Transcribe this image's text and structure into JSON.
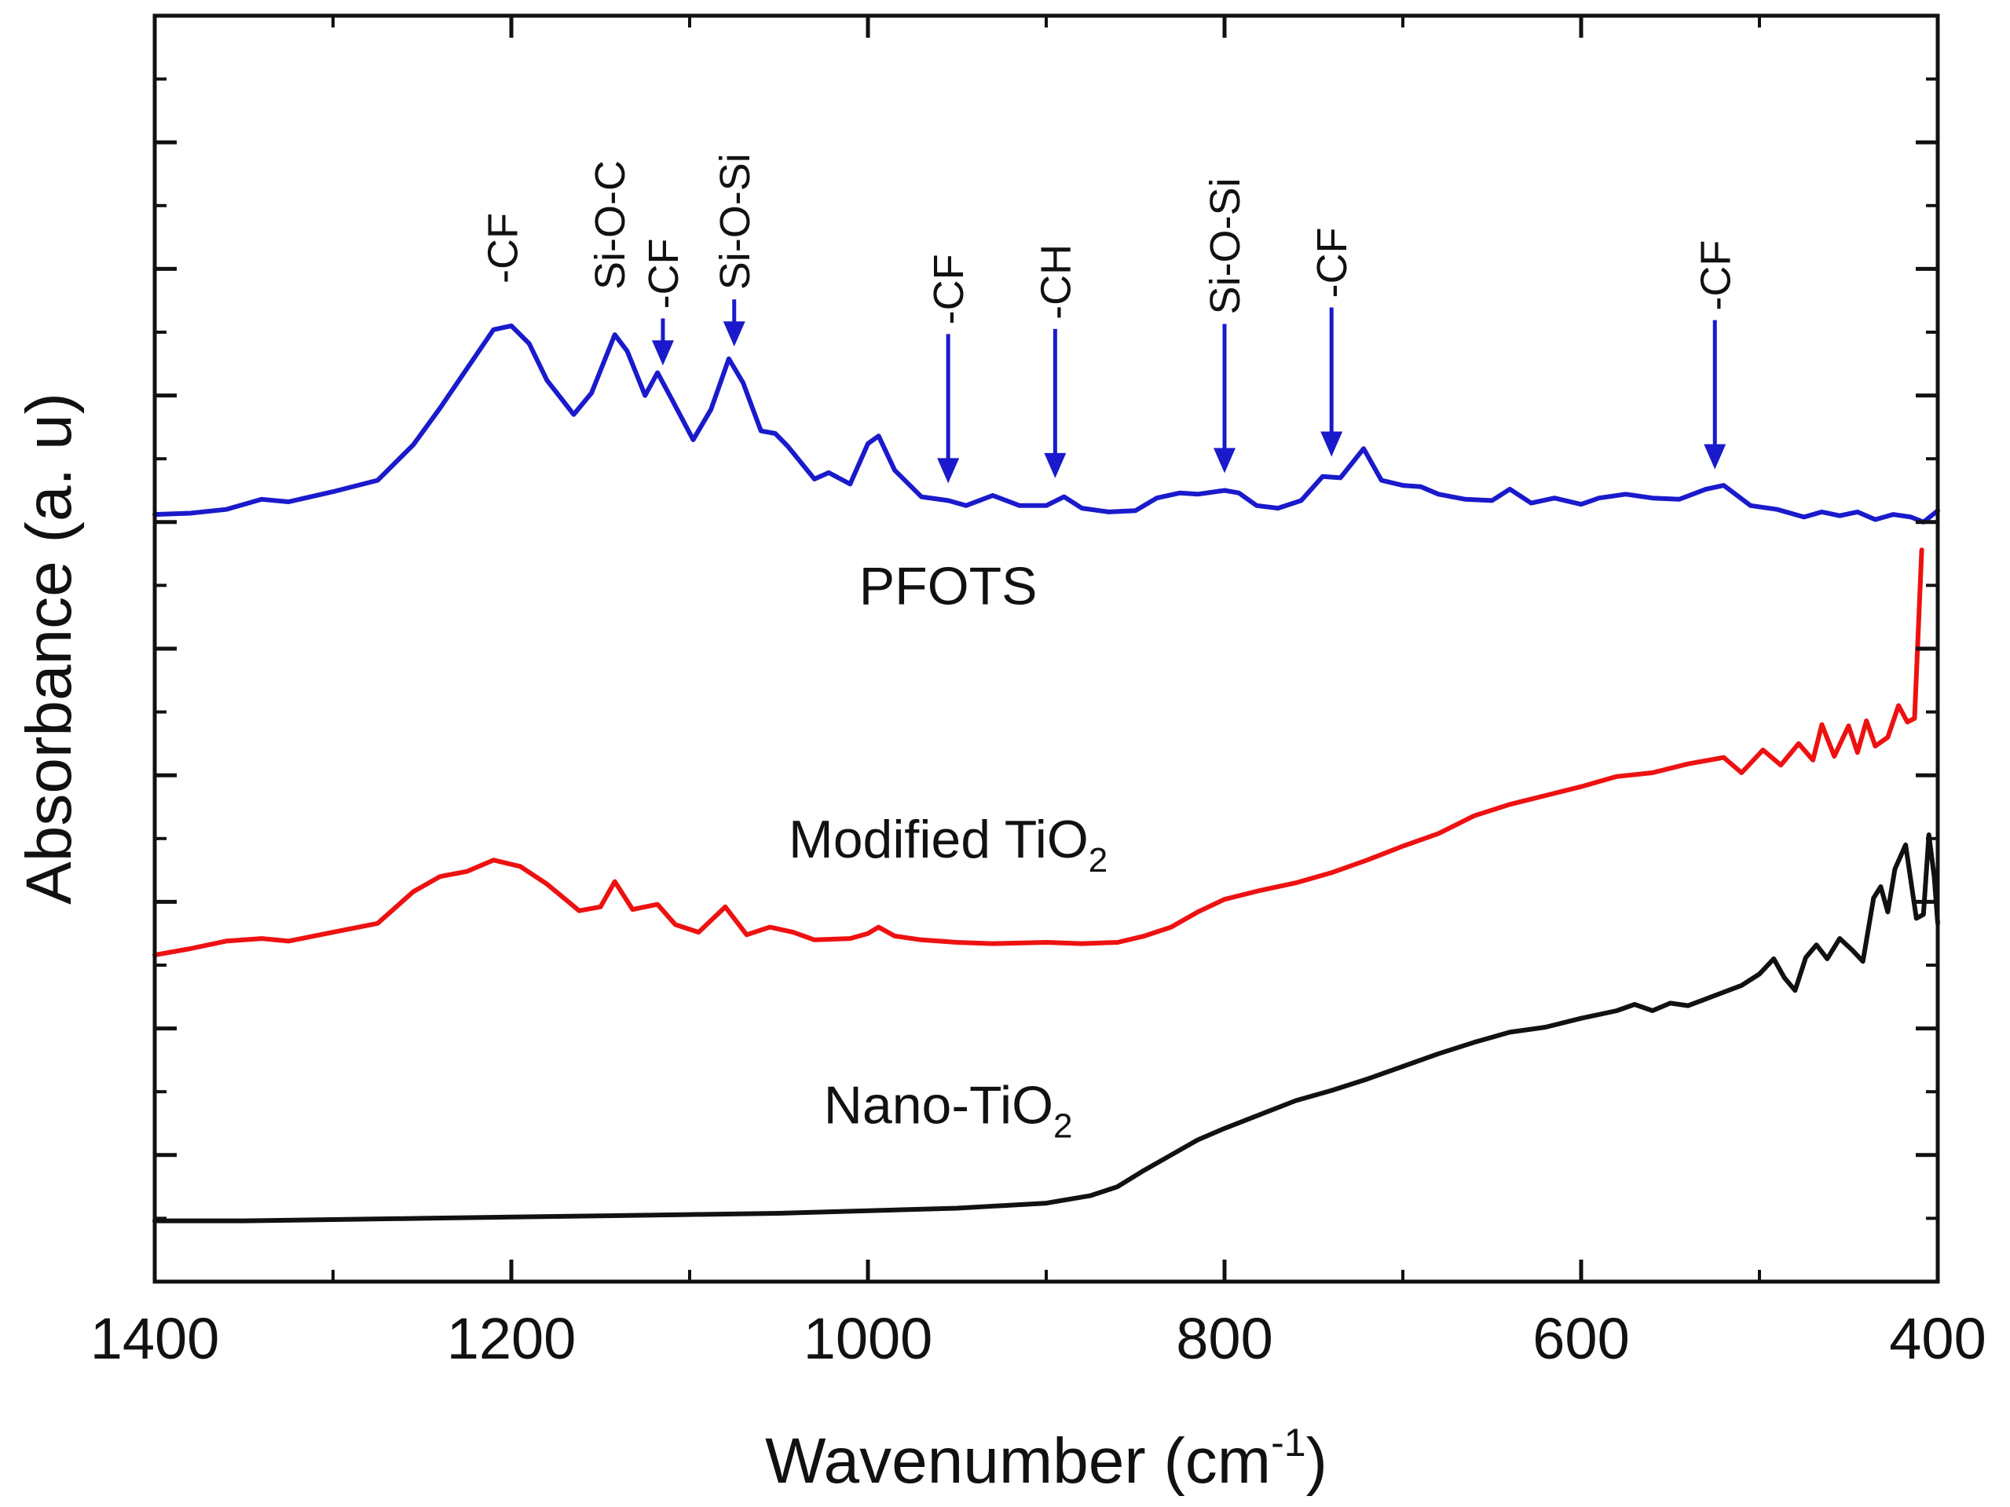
{
  "chart_data": {
    "type": "line",
    "title": "",
    "xlabel": "Wavenumber (cm-1)",
    "xlabel_parts": {
      "main": "Wavenumber (cm",
      "sup": "-1",
      "close": ")"
    },
    "ylabel": "Absorbance (a. u)",
    "xlim": [
      1400,
      400
    ],
    "ylim": [
      0,
      100
    ],
    "x_reversed": true,
    "xticks": [
      1400,
      1200,
      1000,
      800,
      600,
      400
    ],
    "xtick_labels": [
      "1400",
      "1200",
      "1000",
      "800",
      "600",
      "400"
    ],
    "yticks_unlabeled": [
      10,
      20,
      30,
      40,
      50,
      60,
      70,
      80,
      90
    ],
    "grid": false,
    "legend": "inline labels",
    "series": [
      {
        "name": "PFOTS",
        "label": "PFOTS",
        "color": "#1a1acc",
        "points": [
          [
            1400,
            60.6
          ],
          [
            1380,
            60.7
          ],
          [
            1360,
            61.0
          ],
          [
            1340,
            61.8
          ],
          [
            1325,
            61.6
          ],
          [
            1300,
            62.4
          ],
          [
            1275,
            63.3
          ],
          [
            1255,
            66.1
          ],
          [
            1240,
            69.0
          ],
          [
            1225,
            72.1
          ],
          [
            1210,
            75.2
          ],
          [
            1200,
            75.5
          ],
          [
            1190,
            74.1
          ],
          [
            1180,
            71.2
          ],
          [
            1165,
            68.5
          ],
          [
            1155,
            70.2
          ],
          [
            1142,
            74.8
          ],
          [
            1135,
            73.5
          ],
          [
            1125,
            70.0
          ],
          [
            1118,
            71.8
          ],
          [
            1110,
            69.7
          ],
          [
            1098,
            66.5
          ],
          [
            1088,
            68.9
          ],
          [
            1078,
            72.9
          ],
          [
            1070,
            71.0
          ],
          [
            1060,
            67.2
          ],
          [
            1052,
            67.0
          ],
          [
            1045,
            66.0
          ],
          [
            1030,
            63.4
          ],
          [
            1022,
            63.9
          ],
          [
            1010,
            63.0
          ],
          [
            1000,
            66.2
          ],
          [
            994,
            66.8
          ],
          [
            985,
            64.1
          ],
          [
            970,
            62.0
          ],
          [
            955,
            61.7
          ],
          [
            945,
            61.3
          ],
          [
            930,
            62.1
          ],
          [
            915,
            61.3
          ],
          [
            900,
            61.3
          ],
          [
            890,
            62.0
          ],
          [
            880,
            61.1
          ],
          [
            865,
            60.8
          ],
          [
            850,
            60.9
          ],
          [
            838,
            61.9
          ],
          [
            825,
            62.3
          ],
          [
            815,
            62.2
          ],
          [
            800,
            62.5
          ],
          [
            792,
            62.3
          ],
          [
            782,
            61.3
          ],
          [
            770,
            61.1
          ],
          [
            757,
            61.7
          ],
          [
            745,
            63.6
          ],
          [
            735,
            63.5
          ],
          [
            722,
            65.8
          ],
          [
            712,
            63.3
          ],
          [
            700,
            62.9
          ],
          [
            690,
            62.8
          ],
          [
            680,
            62.2
          ],
          [
            665,
            61.8
          ],
          [
            650,
            61.7
          ],
          [
            640,
            62.6
          ],
          [
            628,
            61.5
          ],
          [
            615,
            61.9
          ],
          [
            600,
            61.4
          ],
          [
            590,
            61.9
          ],
          [
            575,
            62.2
          ],
          [
            560,
            61.9
          ],
          [
            545,
            61.8
          ],
          [
            530,
            62.6
          ],
          [
            520,
            62.9
          ],
          [
            505,
            61.3
          ],
          [
            490,
            61.0
          ],
          [
            475,
            60.4
          ],
          [
            465,
            60.8
          ],
          [
            455,
            60.5
          ],
          [
            445,
            60.8
          ],
          [
            435,
            60.2
          ],
          [
            425,
            60.6
          ],
          [
            415,
            60.4
          ],
          [
            408,
            60.0
          ],
          [
            400,
            60.9
          ]
        ]
      },
      {
        "name": "Modified TiO2",
        "label": "Modified TiO",
        "label_sub": "2",
        "color": "#ee1111",
        "points": [
          [
            1400,
            25.8
          ],
          [
            1380,
            26.3
          ],
          [
            1360,
            26.9
          ],
          [
            1340,
            27.1
          ],
          [
            1325,
            26.9
          ],
          [
            1300,
            27.6
          ],
          [
            1275,
            28.3
          ],
          [
            1255,
            30.8
          ],
          [
            1240,
            32.0
          ],
          [
            1225,
            32.4
          ],
          [
            1210,
            33.3
          ],
          [
            1195,
            32.8
          ],
          [
            1180,
            31.4
          ],
          [
            1162,
            29.3
          ],
          [
            1150,
            29.6
          ],
          [
            1142,
            31.6
          ],
          [
            1132,
            29.4
          ],
          [
            1118,
            29.8
          ],
          [
            1108,
            28.2
          ],
          [
            1095,
            27.6
          ],
          [
            1080,
            29.6
          ],
          [
            1068,
            27.4
          ],
          [
            1055,
            28.0
          ],
          [
            1042,
            27.6
          ],
          [
            1030,
            27.0
          ],
          [
            1010,
            27.1
          ],
          [
            1000,
            27.5
          ],
          [
            994,
            28.0
          ],
          [
            985,
            27.3
          ],
          [
            970,
            27.0
          ],
          [
            950,
            26.8
          ],
          [
            930,
            26.7
          ],
          [
            900,
            26.8
          ],
          [
            880,
            26.7
          ],
          [
            860,
            26.8
          ],
          [
            845,
            27.3
          ],
          [
            830,
            28.0
          ],
          [
            815,
            29.2
          ],
          [
            800,
            30.2
          ],
          [
            780,
            30.9
          ],
          [
            760,
            31.5
          ],
          [
            740,
            32.3
          ],
          [
            720,
            33.3
          ],
          [
            700,
            34.4
          ],
          [
            680,
            35.4
          ],
          [
            660,
            36.8
          ],
          [
            640,
            37.7
          ],
          [
            620,
            38.4
          ],
          [
            600,
            39.1
          ],
          [
            580,
            39.9
          ],
          [
            560,
            40.2
          ],
          [
            540,
            40.9
          ],
          [
            520,
            41.4
          ],
          [
            510,
            40.2
          ],
          [
            498,
            42.0
          ],
          [
            488,
            40.8
          ],
          [
            478,
            42.5
          ],
          [
            470,
            41.2
          ],
          [
            465,
            44.0
          ],
          [
            458,
            41.5
          ],
          [
            450,
            43.9
          ],
          [
            445,
            41.8
          ],
          [
            440,
            44.3
          ],
          [
            435,
            42.3
          ],
          [
            428,
            43.0
          ],
          [
            422,
            45.5
          ],
          [
            417,
            44.2
          ],
          [
            413,
            44.5
          ],
          [
            409,
            57.8
          ]
        ]
      },
      {
        "name": "Nano-TiO2",
        "label": "Nano-TiO",
        "label_sub": "2",
        "color": "#111111",
        "points": [
          [
            1400,
            4.8
          ],
          [
            1350,
            4.8
          ],
          [
            1300,
            4.9
          ],
          [
            1250,
            5.0
          ],
          [
            1200,
            5.1
          ],
          [
            1150,
            5.2
          ],
          [
            1100,
            5.3
          ],
          [
            1050,
            5.4
          ],
          [
            1000,
            5.6
          ],
          [
            950,
            5.8
          ],
          [
            900,
            6.2
          ],
          [
            875,
            6.8
          ],
          [
            860,
            7.5
          ],
          [
            845,
            8.8
          ],
          [
            830,
            10.0
          ],
          [
            815,
            11.2
          ],
          [
            800,
            12.1
          ],
          [
            780,
            13.2
          ],
          [
            760,
            14.3
          ],
          [
            740,
            15.1
          ],
          [
            720,
            16.0
          ],
          [
            700,
            17.0
          ],
          [
            680,
            18.0
          ],
          [
            660,
            18.9
          ],
          [
            640,
            19.7
          ],
          [
            620,
            20.1
          ],
          [
            600,
            20.8
          ],
          [
            580,
            21.4
          ],
          [
            570,
            21.9
          ],
          [
            560,
            21.4
          ],
          [
            550,
            22.0
          ],
          [
            540,
            21.8
          ],
          [
            525,
            22.6
          ],
          [
            510,
            23.4
          ],
          [
            500,
            24.3
          ],
          [
            492,
            25.5
          ],
          [
            486,
            24.0
          ],
          [
            480,
            23.0
          ],
          [
            474,
            25.6
          ],
          [
            468,
            26.6
          ],
          [
            462,
            25.5
          ],
          [
            455,
            27.1
          ],
          [
            448,
            26.2
          ],
          [
            442,
            25.3
          ],
          [
            436,
            30.3
          ],
          [
            432,
            31.2
          ],
          [
            428,
            29.2
          ],
          [
            424,
            32.6
          ],
          [
            418,
            34.5
          ],
          [
            412,
            28.7
          ],
          [
            408,
            29.0
          ],
          [
            405,
            35.3
          ],
          [
            402,
            32.0
          ],
          [
            400,
            28.3
          ]
        ]
      }
    ],
    "annotations": [
      {
        "label": "-CF",
        "x": 1205,
        "y_tip": 75.5,
        "arrow": false
      },
      {
        "label": "Si-O-C",
        "x": 1145,
        "y_tip": 75.0,
        "arrow": false
      },
      {
        "label": "-CF",
        "x": 1115,
        "y_tip": 71.5,
        "arrow": true
      },
      {
        "label": "Si-O-Si",
        "x": 1075,
        "y_tip": 73.0,
        "arrow": true
      },
      {
        "label": "-CF",
        "x": 955,
        "y_tip": 62.2,
        "arrow": true
      },
      {
        "label": "-CH",
        "x": 895,
        "y_tip": 62.6,
        "arrow": true
      },
      {
        "label": "Si-O-Si",
        "x": 800,
        "y_tip": 63.0,
        "arrow": true
      },
      {
        "label": "-CF",
        "x": 740,
        "y_tip": 64.3,
        "arrow": true
      },
      {
        "label": "-CF",
        "x": 525,
        "y_tip": 63.3,
        "arrow": true
      }
    ]
  }
}
